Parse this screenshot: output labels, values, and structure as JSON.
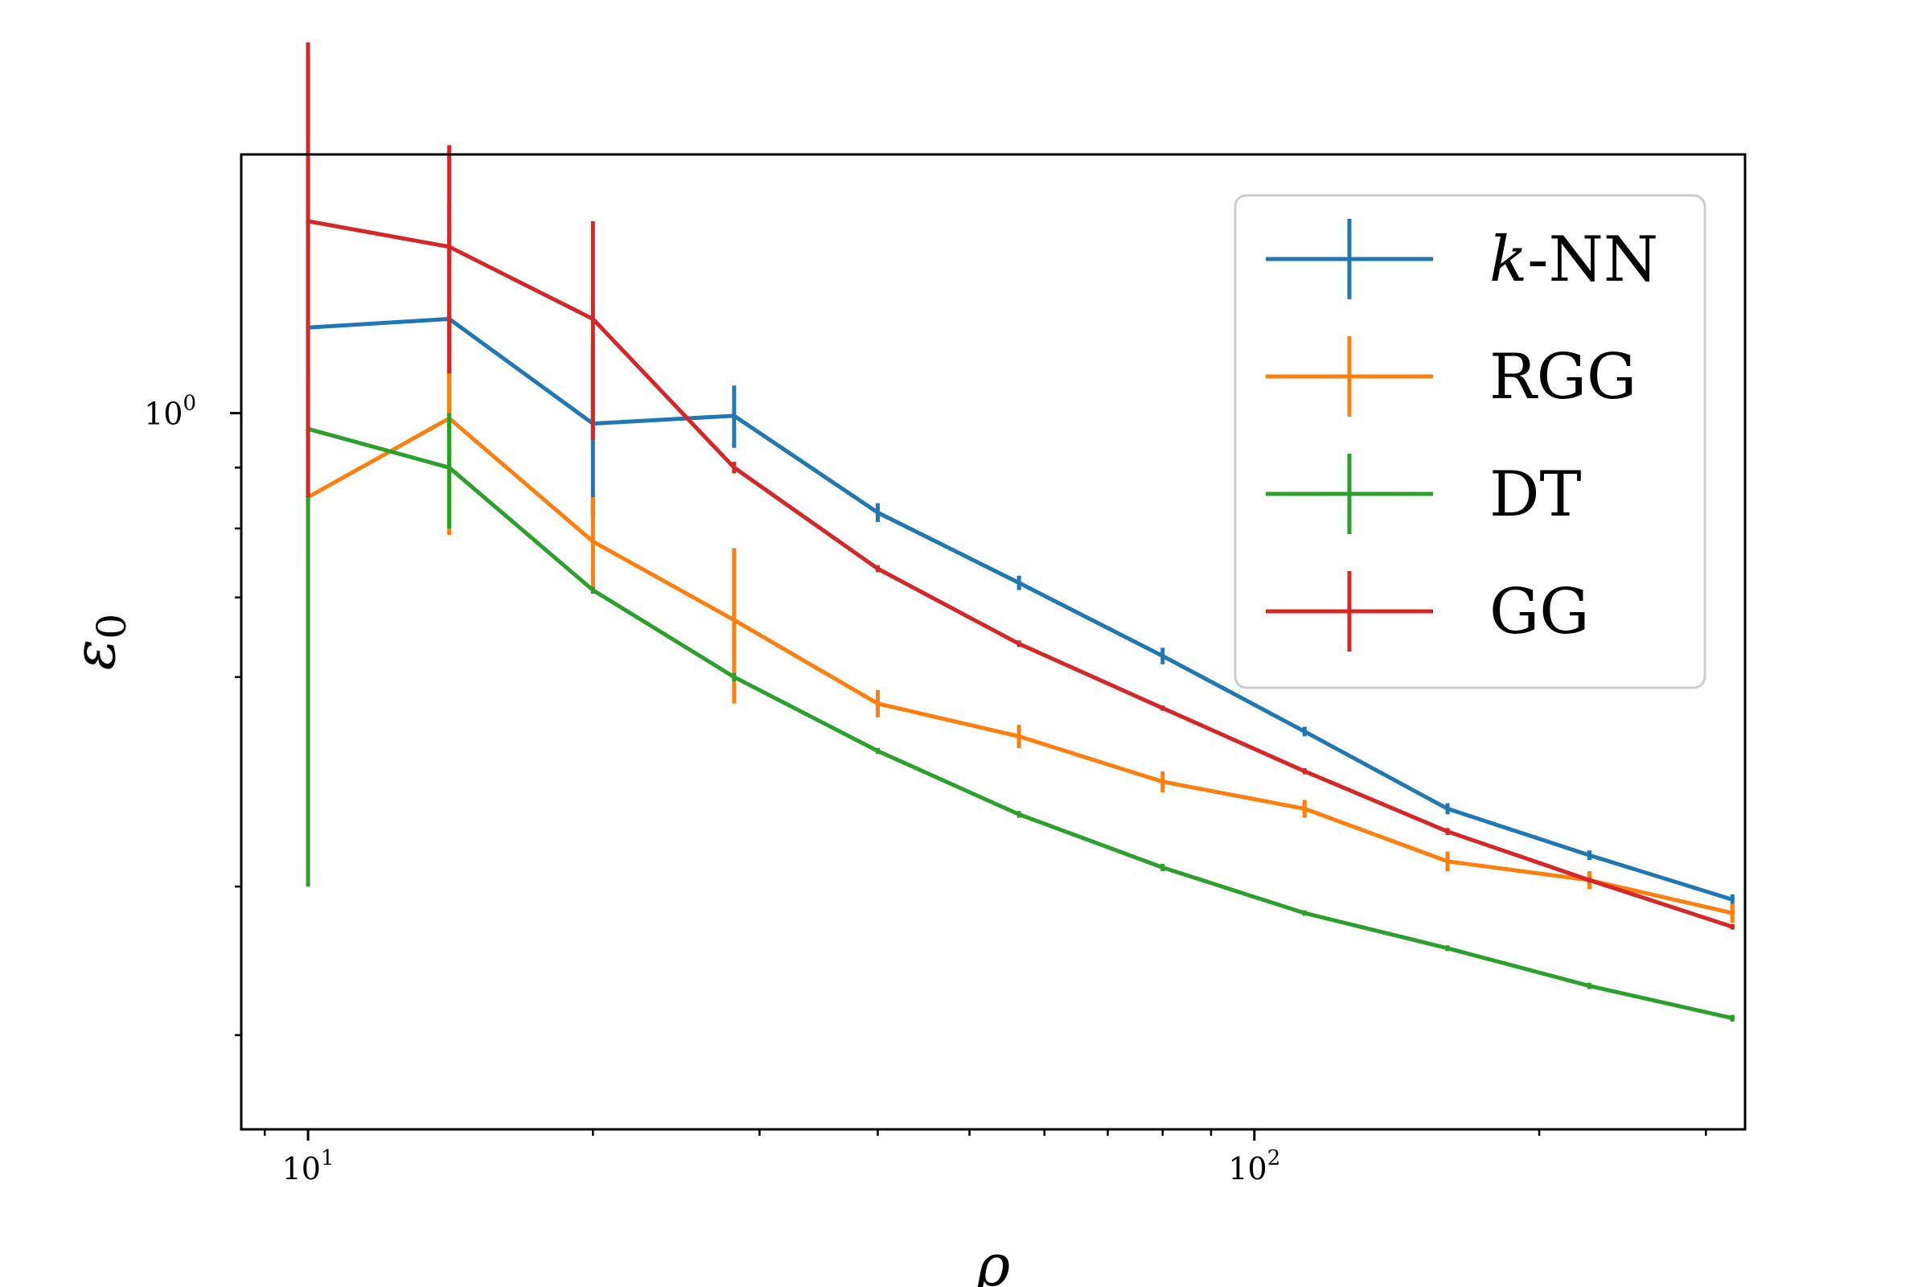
{
  "chart_data": {
    "type": "line",
    "xlabel": "ρ",
    "ylabel": "ε",
    "ylabel_sub": "0",
    "x_scale": "log",
    "y_scale": "log",
    "xlim": [
      8.5,
      330
    ],
    "ylim": [
      0.25,
      1.65
    ],
    "x_tick_labels": [
      {
        "value": 10,
        "base": "10",
        "exp": "1"
      },
      {
        "value": 100,
        "base": "10",
        "exp": "2"
      }
    ],
    "y_tick_labels": [
      {
        "value": 1.0,
        "base": "10",
        "exp": "0"
      }
    ],
    "y_minor_ticks": [
      0.3,
      0.4,
      0.6,
      0.7,
      0.8,
      0.9
    ],
    "x": [
      10,
      14.1,
      20,
      28.2,
      40,
      56.4,
      80,
      113,
      160,
      226,
      320
    ],
    "grid": false,
    "legend_position": "top-right",
    "series": [
      {
        "name_italic": "k",
        "name": "-NN",
        "color": "#1f77b4",
        "values": [
          1.18,
          1.2,
          0.98,
          0.995,
          0.825,
          0.72,
          0.625,
          0.54,
          0.465,
          0.425,
          0.39
        ],
        "err_lo": [
          0.3,
          0.3,
          0.16,
          0.06,
          0.015,
          0.01,
          0.01,
          0.005,
          0.005,
          0.004,
          0.004
        ],
        "err_hi": [
          0.3,
          0.3,
          0.16,
          0.06,
          0.015,
          0.01,
          0.01,
          0.005,
          0.005,
          0.004,
          0.004
        ]
      },
      {
        "name_italic": "",
        "name": "RGG",
        "color": "#ff7f0e",
        "values": [
          0.85,
          0.99,
          0.78,
          0.67,
          0.57,
          0.535,
          0.49,
          0.465,
          0.42,
          0.405,
          0.38
        ],
        "err_lo": [
          0.1,
          0.2,
          0.07,
          0.1,
          0.015,
          0.012,
          0.01,
          0.008,
          0.008,
          0.007,
          0.007
        ],
        "err_hi": [
          0.1,
          0.2,
          0.07,
          0.1,
          0.015,
          0.012,
          0.01,
          0.008,
          0.008,
          0.007,
          0.007
        ]
      },
      {
        "name_italic": "",
        "name": "DT",
        "color": "#2ca02c",
        "values": [
          0.97,
          0.9,
          0.71,
          0.6,
          0.52,
          0.46,
          0.415,
          0.38,
          0.355,
          0.33,
          0.31
        ],
        "err_lo": [
          0.57,
          0.1,
          0.005,
          0.005,
          0.003,
          0.003,
          0.003,
          0.002,
          0.002,
          0.002,
          0.002
        ],
        "err_hi": [
          0.1,
          0.1,
          0.005,
          0.005,
          0.003,
          0.003,
          0.003,
          0.002,
          0.002,
          0.002,
          0.002
        ]
      },
      {
        "name_italic": "",
        "name": "GG",
        "color": "#d62728",
        "values": [
          1.45,
          1.38,
          1.2,
          0.9,
          0.74,
          0.64,
          0.565,
          0.5,
          0.445,
          0.405,
          0.37
        ],
        "err_lo": [
          0.6,
          0.3,
          0.25,
          0.01,
          0.005,
          0.004,
          0.003,
          0.003,
          0.003,
          0.002,
          0.002
        ],
        "err_hi": [
          0.6,
          0.3,
          0.25,
          0.01,
          0.005,
          0.004,
          0.003,
          0.003,
          0.003,
          0.002,
          0.002
        ]
      }
    ]
  }
}
